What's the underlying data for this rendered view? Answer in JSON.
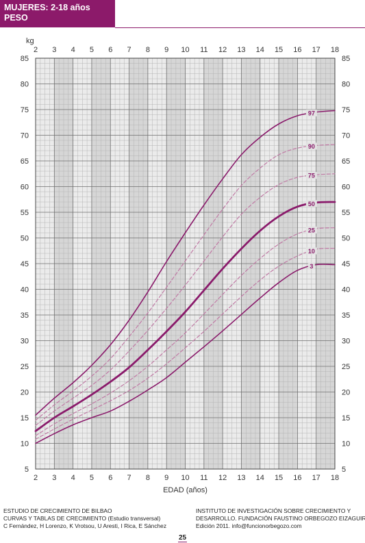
{
  "header": {
    "line1": "MUJERES: 2-18 años",
    "line2": "PESO"
  },
  "colors": {
    "brand": "#8c1a6a",
    "curve": "#8a1a6b",
    "dashed": "#c07aa5",
    "gridMajor": "#6e6e6e",
    "gridMinor": "#b4b4b4",
    "plotBg": "#ebebeb",
    "shade": "#d6d6d6"
  },
  "chart_data": {
    "type": "line",
    "ylabel": "kg",
    "xlabel": "EDAD (años)",
    "xlim": [
      2,
      18
    ],
    "ylim": [
      5,
      85
    ],
    "xticks": [
      "2",
      "3",
      "4",
      "5",
      "6",
      "7",
      "8",
      "9",
      "10",
      "11",
      "12",
      "13",
      "14",
      "15",
      "16",
      "17",
      "18"
    ],
    "yticks": [
      "5",
      "10",
      "15",
      "20",
      "25",
      "30",
      "35",
      "40",
      "45",
      "50",
      "55",
      "60",
      "65",
      "70",
      "75",
      "80",
      "85"
    ],
    "x": [
      2,
      3,
      4,
      5,
      6,
      7,
      8,
      9,
      10,
      11,
      12,
      13,
      14,
      15,
      16,
      17,
      18
    ],
    "grid": true,
    "series": [
      {
        "name": "97",
        "style": "solid",
        "weight": "normal",
        "values": [
          15.5,
          18.8,
          21.8,
          25.2,
          29.2,
          34.0,
          39.5,
          45.4,
          51.0,
          56.4,
          61.5,
          66.2,
          69.6,
          72.2,
          73.8,
          74.5,
          74.8
        ]
      },
      {
        "name": "90",
        "style": "dashed",
        "values": [
          14.5,
          17.5,
          20.2,
          23.1,
          26.5,
          30.8,
          35.4,
          40.4,
          45.5,
          50.6,
          55.6,
          60.2,
          63.6,
          66.2,
          67.5,
          68.0,
          68.2
        ]
      },
      {
        "name": "75",
        "style": "dashed",
        "values": [
          13.5,
          16.3,
          18.8,
          21.3,
          24.3,
          28.0,
          32.0,
          36.3,
          40.8,
          45.5,
          50.2,
          54.6,
          57.9,
          60.4,
          61.8,
          62.3,
          62.5
        ]
      },
      {
        "name": "50",
        "style": "solid",
        "weight": "bold",
        "values": [
          12.4,
          15.0,
          17.2,
          19.5,
          22.0,
          24.8,
          28.2,
          31.8,
          35.6,
          39.8,
          44.0,
          47.9,
          51.4,
          54.2,
          56.1,
          56.9,
          57.0
        ]
      },
      {
        "name": "25",
        "style": "dashed",
        "values": [
          11.5,
          13.8,
          15.8,
          17.7,
          19.8,
          22.2,
          25.0,
          28.2,
          31.5,
          35.2,
          39.0,
          42.7,
          46.0,
          48.8,
          50.8,
          51.8,
          52.0
        ]
      },
      {
        "name": "10",
        "style": "dashed",
        "values": [
          10.8,
          12.8,
          14.7,
          16.5,
          18.3,
          20.3,
          22.7,
          25.5,
          28.6,
          31.8,
          35.2,
          38.6,
          41.8,
          44.5,
          46.5,
          47.8,
          48.0
        ]
      },
      {
        "name": "3",
        "style": "solid",
        "weight": "normal",
        "values": [
          10.0,
          11.9,
          13.6,
          15.0,
          16.3,
          18.2,
          20.4,
          22.8,
          25.8,
          28.8,
          31.9,
          35.1,
          38.3,
          41.3,
          43.7,
          44.8,
          44.8
        ]
      }
    ]
  },
  "footer": {
    "left1": "ESTUDIO DE CRECIMIENTO DE BILBAO",
    "left2": "CURVAS Y TABLAS DE CRECIMIENTO (Estudio transversal)",
    "left3": "C Fernández, H Lorenzo, K Vrotsou, U Aresti, I Rica, E Sánchez",
    "right1": "INSTITUTO DE INVESTIGACIÓN SOBRE CRECIMIENTO Y",
    "right2": "DESARROLLO. FUNDACIÓN FAUSTINO ORBEGOZO EIZAGUIRRE",
    "right3": "Edición 2011. info@funcionorbegozo.com"
  },
  "page_number": "25"
}
